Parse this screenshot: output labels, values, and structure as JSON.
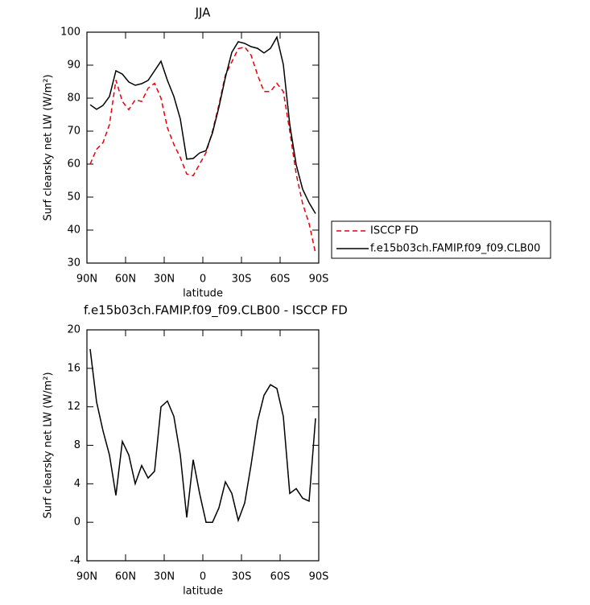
{
  "chart_data": [
    {
      "type": "line",
      "title": "JJA",
      "x_label": "latitude",
      "y_label": "Surf clearsky net LW (W/m²)",
      "x": [
        87.5,
        82.5,
        77.5,
        72.5,
        67.5,
        62.5,
        57.5,
        52.5,
        47.5,
        42.5,
        37.5,
        32.5,
        27.5,
        22.5,
        17.5,
        12.5,
        7.5,
        2.5,
        -2.5,
        -7.5,
        -12.5,
        -17.5,
        -22.5,
        -27.5,
        -32.5,
        -37.5,
        -42.5,
        -47.5,
        -52.5,
        -57.5,
        -62.5,
        -67.5,
        -72.5,
        -77.5,
        -82.5,
        -87.5
      ],
      "xlim": [
        90,
        -90
      ],
      "xticks": [
        {
          "value": 90,
          "label": "90N"
        },
        {
          "value": 60,
          "label": "60N"
        },
        {
          "value": 30,
          "label": "30N"
        },
        0,
        {
          "value": -30,
          "label": "30S"
        },
        {
          "value": -60,
          "label": "60S"
        },
        {
          "value": -90,
          "label": "90S"
        }
      ],
      "ylim": [
        30,
        100
      ],
      "yticks": [
        30,
        40,
        50,
        60,
        70,
        80,
        90,
        100
      ],
      "legend": "right",
      "series": [
        {
          "name": "ISCCP FD",
          "color": "#e8000b",
          "line_style": "dashed",
          "values": [
            60,
            64.5,
            66.5,
            72,
            85.5,
            79,
            76.5,
            79.5,
            79,
            83,
            84.5,
            80,
            71,
            66,
            62,
            57,
            56.5,
            60,
            63.5,
            70,
            78,
            87,
            91,
            95,
            95.5,
            93,
            87,
            82,
            82,
            84.5,
            82,
            70,
            57,
            48,
            42,
            33
          ]
        },
        {
          "name": "f.e15b03ch.FAMIP.f09_f09.CLB00",
          "color": "#000000",
          "line_style": "solid",
          "values": [
            78,
            76.6,
            77.8,
            80.5,
            88.3,
            87.3,
            84.9,
            83.9,
            84.4,
            85.4,
            88.3,
            91.2,
            85.4,
            80.5,
            73.7,
            61.5,
            61.7,
            63.4,
            64.1,
            69.5,
            77.3,
            86.3,
            93.9,
            97.1,
            96.6,
            95.6,
            95.1,
            93.7,
            95.1,
            98.5,
            90.2,
            72,
            59.8,
            52.4,
            48.3,
            45
          ]
        }
      ]
    },
    {
      "type": "line",
      "title": "f.e15b03ch.FAMIP.f09_f09.CLB00 - ISCCP FD",
      "x_label": "latitude",
      "y_label": "Surf clearsky net LW (W/m²)",
      "x": [
        87.5,
        82.5,
        77.5,
        72.5,
        67.5,
        62.5,
        57.5,
        52.5,
        47.5,
        42.5,
        37.5,
        32.5,
        27.5,
        22.5,
        17.5,
        12.5,
        7.5,
        2.5,
        -2.5,
        -7.5,
        -12.5,
        -17.5,
        -22.5,
        -27.5,
        -32.5,
        -37.5,
        -42.5,
        -47.5,
        -52.5,
        -57.5,
        -62.5,
        -67.5,
        -72.5,
        -77.5,
        -82.5,
        -87.5
      ],
      "xlim": [
        90,
        -90
      ],
      "xticks": [
        {
          "value": 90,
          "label": "90N"
        },
        {
          "value": 60,
          "label": "60N"
        },
        {
          "value": 30,
          "label": "30N"
        },
        0,
        {
          "value": -30,
          "label": "30S"
        },
        {
          "value": -60,
          "label": "60S"
        },
        {
          "value": -90,
          "label": "90S"
        }
      ],
      "ylim": [
        -4,
        20
      ],
      "yticks": [
        -4,
        0,
        4,
        8,
        12,
        16,
        20
      ],
      "series": [
        {
          "color": "#000000",
          "line_style": "solid",
          "values": [
            18,
            12.5,
            9.5,
            7,
            2.8,
            8.4,
            7,
            4,
            5.9,
            4.6,
            5.3,
            12,
            12.6,
            11,
            7,
            0.5,
            6.5,
            3,
            0,
            0,
            1.5,
            4.2,
            3,
            0.2,
            2,
            6,
            10.5,
            13.2,
            14.3,
            13.9,
            11,
            3,
            3.5,
            2.5,
            2.2,
            10.8
          ]
        }
      ]
    }
  ]
}
